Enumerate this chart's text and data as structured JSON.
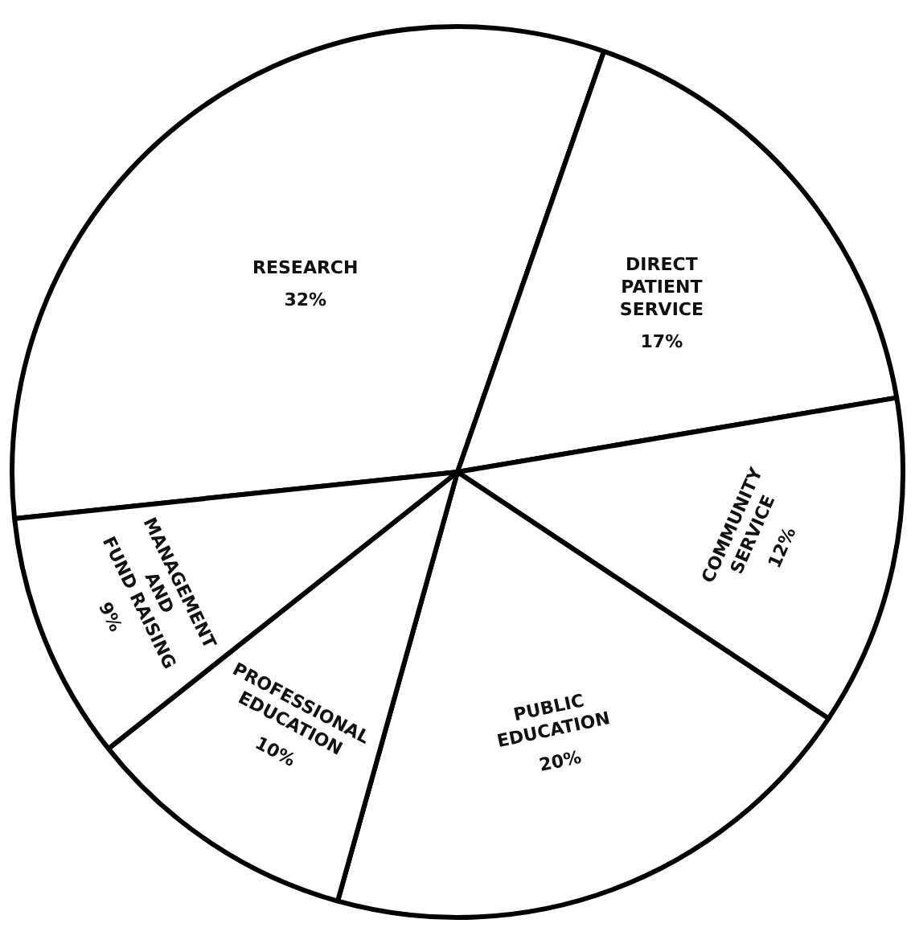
{
  "chart_data": {
    "type": "pie",
    "categories": [
      "RESEARCH",
      "DIRECT\nPATIENT\nSERVICE",
      "COMMUNITY\nSERVICE",
      "PUBLIC\nEDUCATION",
      "PROFESSIONAL\nEDUCATION",
      "MANAGEMENT\nAND\nFUND RAISING"
    ],
    "values": [
      32,
      17,
      12,
      20,
      10,
      9
    ],
    "value_labels": [
      "32%",
      "17%",
      "12%",
      "20%",
      "10%",
      "9%"
    ],
    "colors": [
      "#ffffff",
      "#ffffff",
      "#ffffff",
      "#ffffff",
      "#ffffff",
      "#ffffff"
    ],
    "legend": false
  }
}
